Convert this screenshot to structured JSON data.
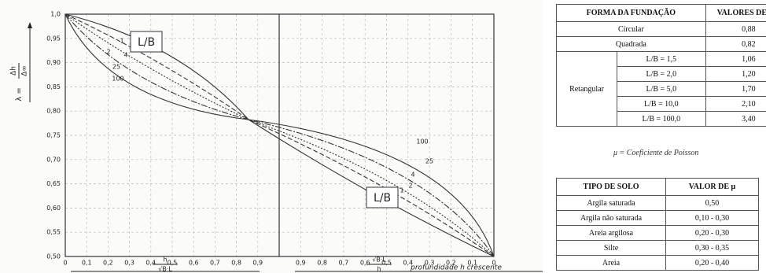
{
  "figure": {
    "y_label_lhs": "λ =",
    "y_label_num": "Δh",
    "y_label_den": "Δ∞",
    "yticks": [
      "1,0",
      "0,95",
      "0,90",
      "0,85",
      "0,80",
      "0,75",
      "0,70",
      "0,65",
      "0,60",
      "0,55",
      "0,50"
    ],
    "xticks_left": [
      "0",
      "0,1",
      "0,2",
      "0,3",
      "0,4",
      "0,5",
      "0,6",
      "0,7",
      "0,8",
      "0,9"
    ],
    "xticks_right": [
      "0,9",
      "0,8",
      "0,7",
      "0,6",
      "0,5",
      "0,4",
      "0,3",
      "0,2",
      "0,1",
      "0"
    ],
    "curve_labels_left": [
      "1",
      "2",
      "4",
      "25",
      "100"
    ],
    "curve_labels_right": [
      "100",
      "25",
      "4",
      "2",
      "1"
    ],
    "box_labels": [
      "L/B",
      "L/B"
    ],
    "x_label_left_num": "h",
    "x_label_left_den": "√B·L",
    "x_label_right_num": "√B·L",
    "x_label_right_den": "h",
    "footer": "profundidade h crescente"
  },
  "table_1": {
    "header": [
      "FORMA DA FUNDAÇÃO",
      "VALORES DE CA"
    ],
    "rows": [
      [
        "Circular",
        "0,88"
      ],
      [
        "Quadrada",
        "0,82"
      ]
    ],
    "group": {
      "label": "Retangular",
      "rows": [
        [
          "L/B = 1,5",
          "1,06"
        ],
        [
          "L/B = 2,0",
          "1,20"
        ],
        [
          "L/B = 5,0",
          "1,70"
        ],
        [
          "L/B = 10,0",
          "2,10"
        ],
        [
          "L/B = 100,0",
          "3,40"
        ]
      ]
    }
  },
  "caption": "μ = Coeficiente de Poisson",
  "table_2": {
    "header": [
      "TIPO DE SOLO",
      "VALOR DE μ"
    ],
    "rows": [
      [
        "Argila saturada",
        "0,50"
      ],
      [
        "Argila não saturada",
        "0,10 - 0,30"
      ],
      [
        "Areia argilosa",
        "0,20 - 0,30"
      ],
      [
        "Silte",
        "0,30 - 0,35"
      ],
      [
        "Areia",
        "0,20 - 0,40"
      ]
    ]
  }
}
